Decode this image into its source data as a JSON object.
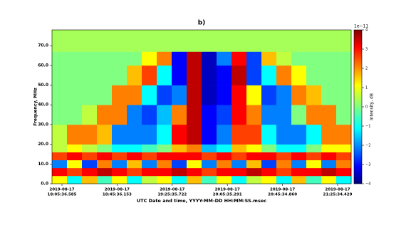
{
  "chart_data": {
    "type": "heatmap",
    "title": "b)",
    "ylabel": "Frequency, MHz",
    "xlabel": "UTC Date and time, YYYY-MM-DD HH:MM:SS.msec",
    "colorbar_label": "Intensity, dB",
    "colorbar_offset": "1e−11",
    "ylim": [
      0,
      78
    ],
    "yticks": [
      {
        "value": 0,
        "label": "0.0"
      },
      {
        "value": 10,
        "label": "10.0"
      },
      {
        "value": 20,
        "label": "20.0"
      },
      {
        "value": 30,
        "label": "30.0"
      },
      {
        "value": 40,
        "label": "40.0"
      },
      {
        "value": 50,
        "label": "50.0"
      },
      {
        "value": 60,
        "label": "60.0"
      },
      {
        "value": 70,
        "label": "70.0"
      }
    ],
    "xtick_labels": [
      [
        "2019-08-17",
        "18:05:36.585"
      ],
      [
        "2019-08-17",
        "18:45:36.153"
      ],
      [
        "2019-08-17",
        "19:25:35.722"
      ],
      [
        "2019-08-17",
        "20:05:35.291"
      ],
      [
        "2019-08-17",
        "20:45:34.860"
      ],
      [
        "2019-08-17",
        "21:25:34.429"
      ]
    ],
    "clim": [
      -4,
      4
    ],
    "cticks": [
      {
        "value": -4,
        "label": "−4"
      },
      {
        "value": -3,
        "label": "−3"
      },
      {
        "value": -2,
        "label": "−2"
      },
      {
        "value": -1,
        "label": "−1"
      },
      0,
      1,
      2,
      3,
      4
    ],
    "colormap": "jet",
    "y_edges": [
      0,
      4,
      8,
      12,
      16,
      20,
      30,
      40,
      50,
      60,
      67,
      78
    ],
    "z": [
      [
        1,
        -1,
        1.5,
        -0.5,
        1,
        -1,
        0.5,
        1,
        -1,
        1.5,
        -0.5,
        1,
        -1,
        0.5,
        1,
        -1,
        1.5,
        -0.5,
        1,
        -1
      ],
      [
        3,
        2.5,
        3,
        3.5,
        3,
        2.5,
        3,
        3,
        3.5,
        3,
        2.5,
        3,
        3,
        3.5,
        3,
        2.5,
        3,
        3,
        3.5,
        3
      ],
      [
        -2,
        1,
        -2.5,
        2,
        -2,
        1.5,
        -2,
        2,
        -2.5,
        1,
        -2,
        2,
        -2,
        1.5,
        -2.5,
        2,
        -2,
        1,
        -2,
        2
      ],
      [
        2.5,
        3,
        2.5,
        3,
        2.5,
        3,
        2.5,
        3,
        3,
        3,
        2.5,
        3,
        2.5,
        3,
        3,
        2.5,
        3,
        2.5,
        3,
        2.5
      ],
      [
        0.5,
        1,
        0.5,
        0,
        -1,
        -1,
        -0.5,
        0,
        1.5,
        2,
        -1.5,
        -1,
        1.5,
        1,
        0,
        -1,
        -1,
        0,
        1,
        1
      ],
      [
        0.5,
        2,
        2,
        1.5,
        -2,
        -2,
        -2,
        -1,
        3,
        3.5,
        -3,
        -2,
        2.5,
        2.5,
        -1,
        -2,
        -2,
        -1,
        2,
        2
      ],
      [
        0,
        0,
        0.5,
        2,
        2,
        -2,
        -2.5,
        -1.5,
        2,
        3.5,
        -3,
        -2.5,
        3,
        2,
        -2,
        -2,
        0,
        2,
        2,
        0
      ],
      [
        0,
        0,
        0,
        0,
        2,
        2,
        -1,
        -2.5,
        -2,
        3.5,
        -3.5,
        -3,
        3,
        1,
        -2.5,
        -2,
        2,
        1.5,
        0,
        0
      ],
      [
        0,
        0,
        0,
        0,
        0,
        1.5,
        2.5,
        -1,
        -3,
        3.5,
        -3.5,
        -3,
        3.5,
        -2.5,
        -1,
        2,
        1,
        0,
        0,
        0
      ],
      [
        0,
        0,
        0,
        0,
        0,
        0,
        1,
        2,
        -3,
        3.5,
        -3.5,
        -2,
        3,
        -2.5,
        1.5,
        0.5,
        0,
        0,
        0,
        0
      ],
      [
        0.3,
        0.3,
        0.3,
        0.3,
        0.3,
        0.3,
        0.3,
        0.3,
        0.3,
        0.3,
        0.3,
        0.3,
        0.3,
        0.3,
        0.3,
        0.3,
        0.3,
        0.3,
        0.3,
        0.3
      ]
    ]
  }
}
